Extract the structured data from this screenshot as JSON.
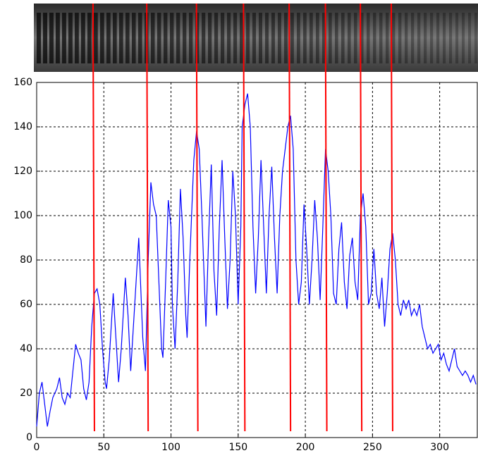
{
  "chart_data": {
    "type": "line",
    "x": [
      0,
      2,
      4,
      6,
      8,
      10,
      12,
      15,
      17,
      19,
      21,
      23,
      25,
      27,
      29,
      31,
      33,
      35,
      37,
      39,
      41,
      43,
      45,
      47,
      49,
      51,
      52,
      54,
      57,
      59,
      61,
      63,
      66,
      68,
      70,
      73,
      76,
      79,
      81,
      83,
      85,
      87,
      89,
      91,
      93,
      94,
      96,
      98,
      100,
      101,
      103,
      105,
      107,
      109,
      111,
      112,
      114,
      117,
      119,
      121,
      123,
      126,
      128,
      130,
      132,
      134,
      136,
      138,
      140,
      142,
      144,
      146,
      148,
      150,
      152,
      153,
      155,
      157,
      159,
      161,
      163,
      165,
      167,
      169,
      171,
      173,
      175,
      177,
      179,
      181,
      183,
      185,
      187,
      189,
      191,
      193,
      195,
      197,
      199,
      201,
      203,
      205,
      207,
      209,
      211,
      213,
      215,
      217,
      219,
      221,
      223,
      225,
      227,
      229,
      231,
      233,
      235,
      237,
      239,
      241,
      243,
      245,
      247,
      249,
      251,
      253,
      255,
      257,
      259,
      261,
      263,
      265,
      267,
      269,
      271,
      273,
      275,
      277,
      279,
      281,
      283,
      285,
      287,
      289,
      291,
      293,
      295,
      297,
      299,
      301,
      303,
      305,
      307,
      309,
      311,
      313,
      315,
      317,
      319,
      321,
      323,
      325,
      327
    ],
    "series": [
      {
        "color": "#0000ff",
        "values": [
          5,
          20,
          25,
          15,
          5,
          12,
          18,
          22,
          27,
          18,
          15,
          20,
          18,
          30,
          42,
          38,
          35,
          22,
          17,
          25,
          50,
          65,
          67,
          60,
          40,
          25,
          22,
          35,
          65,
          45,
          25,
          40,
          72,
          55,
          30,
          60,
          90,
          45,
          30,
          80,
          115,
          105,
          100,
          70,
          40,
          36,
          70,
          107,
          95,
          60,
          40,
          70,
          112,
          90,
          55,
          45,
          80,
          125,
          138,
          130,
          100,
          50,
          90,
          123,
          75,
          55,
          95,
          125,
          90,
          58,
          80,
          120,
          100,
          60,
          95,
          140,
          150,
          155,
          140,
          95,
          65,
          90,
          125,
          95,
          65,
          100,
          122,
          90,
          65,
          100,
          120,
          130,
          140,
          145,
          130,
          80,
          60,
          70,
          105,
          85,
          60,
          80,
          107,
          90,
          62,
          95,
          130,
          120,
          100,
          65,
          60,
          85,
          97,
          70,
          58,
          82,
          90,
          70,
          62,
          100,
          110,
          95,
          60,
          65,
          85,
          65,
          58,
          72,
          50,
          65,
          85,
          92,
          80,
          60,
          55,
          62,
          58,
          62,
          55,
          58,
          55,
          60,
          50,
          45,
          40,
          42,
          38,
          40,
          42,
          35,
          38,
          33,
          30,
          35,
          40,
          32,
          30,
          28,
          30,
          28,
          25,
          28,
          24
        ]
      }
    ],
    "markers": [
      43,
      83,
      120,
      155,
      189,
      216,
      242,
      265
    ],
    "marker_color": "#ff0000",
    "xlim": [
      0,
      328
    ],
    "ylim": [
      0,
      160
    ],
    "xticks": [
      0,
      50,
      100,
      150,
      200,
      250,
      300
    ],
    "yticks": [
      0,
      20,
      40,
      60,
      80,
      100,
      120,
      140,
      160
    ],
    "grid": true
  }
}
